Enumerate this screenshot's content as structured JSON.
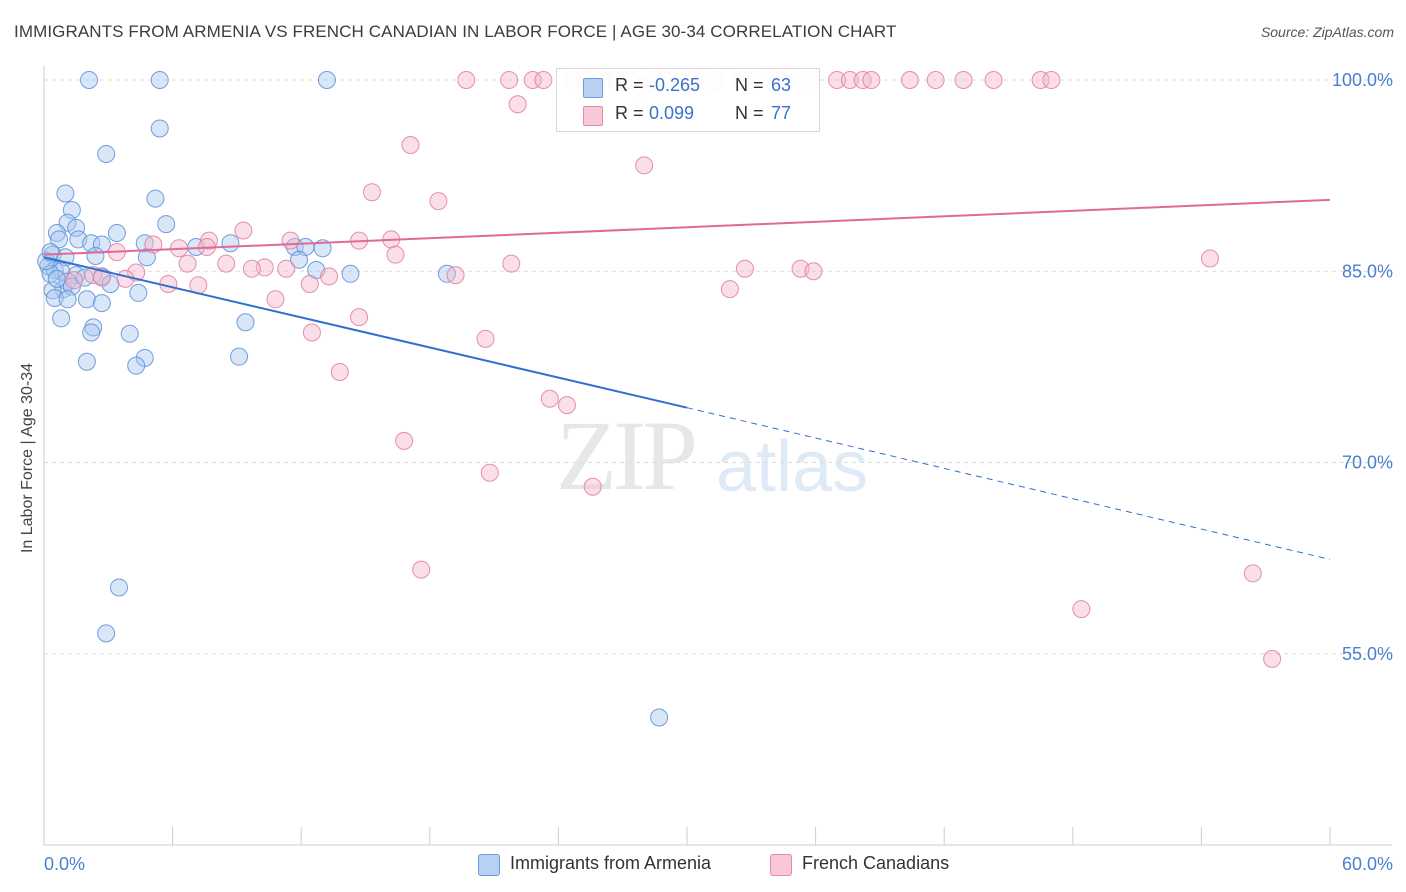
{
  "title": "IMMIGRANTS FROM ARMENIA VS FRENCH CANADIAN IN LABOR FORCE | AGE 30-34 CORRELATION CHART",
  "source": "Source: ZipAtlas.com",
  "watermark": {
    "zip": "ZIP",
    "atlas": "atlas"
  },
  "colors": {
    "blue": "#5b8fd6",
    "blue_fill": "#a9c7ef",
    "pink": "#e07ca0",
    "pink_fill": "#f4b8cc",
    "blue_line": "#2f6fd0",
    "pink_line": "#e06a96",
    "tick": "#4a7fd0"
  },
  "legend": {
    "rows": [
      {
        "r_label": "R =",
        "r_value": "-0.265",
        "n_label": "N =",
        "n_value": "63"
      },
      {
        "r_label": "R =",
        "r_value": "0.099",
        "n_label": "N =",
        "n_value": "77"
      }
    ]
  },
  "bottom_legend": [
    "Immigrants from Armenia",
    "French Canadians"
  ],
  "chart_data": {
    "type": "scatter",
    "title": "IMMIGRANTS FROM ARMENIA VS FRENCH CANADIAN IN LABOR FORCE | AGE 30-34 CORRELATION CHART",
    "xlabel": "",
    "ylabel": "In Labor Force | Age 30-34",
    "xlim": [
      0,
      60
    ],
    "ylim": [
      40,
      101
    ],
    "x_tick_labels": [
      "0.0%",
      "60.0%"
    ],
    "y_tick_labels": [
      "100.0%",
      "85.0%",
      "70.0%",
      "55.0%"
    ],
    "y_ticks": [
      100,
      85,
      70,
      55
    ],
    "grid": true,
    "legend_position": "top-center",
    "series": [
      {
        "name": "Immigrants from Armenia",
        "color": "#5b8fd6",
        "r": -0.265,
        "n": 63,
        "trend": {
          "x0": 0,
          "y0": 86.1,
          "x1": 30,
          "y1": 74.3,
          "dashed_to_x": 60,
          "dashed_to_y": 62.4
        },
        "points": [
          [
            2.1,
            100
          ],
          [
            5.4,
            100
          ],
          [
            13.2,
            100
          ],
          [
            5.4,
            96.2
          ],
          [
            2.9,
            94.2
          ],
          [
            1.0,
            91.1
          ],
          [
            5.2,
            90.7
          ],
          [
            1.3,
            89.8
          ],
          [
            1.1,
            88.8
          ],
          [
            1.5,
            88.4
          ],
          [
            5.7,
            88.7
          ],
          [
            0.6,
            88.0
          ],
          [
            3.4,
            88.0
          ],
          [
            0.7,
            87.5
          ],
          [
            1.6,
            87.5
          ],
          [
            2.2,
            87.2
          ],
          [
            2.7,
            87.1
          ],
          [
            4.7,
            87.2
          ],
          [
            8.7,
            87.2
          ],
          [
            7.1,
            86.9
          ],
          [
            11.7,
            86.9
          ],
          [
            12.2,
            86.9
          ],
          [
            0.4,
            86.3
          ],
          [
            1.0,
            86.1
          ],
          [
            2.4,
            86.2
          ],
          [
            4.8,
            86.1
          ],
          [
            11.9,
            85.9
          ],
          [
            0.2,
            85.4
          ],
          [
            0.5,
            85.1
          ],
          [
            0.8,
            85.0
          ],
          [
            0.3,
            84.8
          ],
          [
            1.5,
            84.7
          ],
          [
            12.7,
            85.1
          ],
          [
            14.3,
            84.8
          ],
          [
            18.8,
            84.8
          ],
          [
            2.7,
            84.6
          ],
          [
            1.1,
            84.2
          ],
          [
            3.1,
            84.0
          ],
          [
            0.9,
            83.6
          ],
          [
            1.3,
            83.8
          ],
          [
            0.4,
            83.5
          ],
          [
            4.4,
            83.3
          ],
          [
            0.5,
            82.9
          ],
          [
            2.0,
            82.8
          ],
          [
            1.1,
            82.8
          ],
          [
            2.7,
            82.5
          ],
          [
            0.8,
            81.3
          ],
          [
            9.4,
            81.0
          ],
          [
            2.3,
            80.6
          ],
          [
            2.2,
            80.2
          ],
          [
            4.0,
            80.1
          ],
          [
            4.7,
            78.2
          ],
          [
            9.1,
            78.3
          ],
          [
            2.0,
            77.9
          ],
          [
            4.3,
            77.6
          ],
          [
            3.5,
            60.2
          ],
          [
            2.9,
            56.6
          ],
          [
            28.7,
            50.0
          ],
          [
            0.1,
            85.8
          ],
          [
            0.3,
            86.5
          ],
          [
            1.9,
            84.5
          ],
          [
            0.6,
            84.4
          ],
          [
            13.0,
            86.8
          ]
        ]
      },
      {
        "name": "French Canadians",
        "color": "#e07ca0",
        "r": 0.099,
        "n": 77,
        "trend": {
          "x0": 0,
          "y0": 86.3,
          "x1": 60,
          "y1": 90.6
        },
        "points": [
          [
            19.7,
            100
          ],
          [
            21.7,
            100
          ],
          [
            22.8,
            100
          ],
          [
            23.3,
            100
          ],
          [
            24.7,
            100
          ],
          [
            25.3,
            100
          ],
          [
            26.0,
            100
          ],
          [
            26.7,
            100
          ],
          [
            27.4,
            100
          ],
          [
            28.5,
            100
          ],
          [
            29.0,
            100
          ],
          [
            30.3,
            100
          ],
          [
            31.3,
            100
          ],
          [
            32.6,
            100
          ],
          [
            33.0,
            100
          ],
          [
            34.3,
            100
          ],
          [
            35.7,
            100
          ],
          [
            37.0,
            100
          ],
          [
            37.6,
            100
          ],
          [
            38.2,
            100
          ],
          [
            40.4,
            100
          ],
          [
            42.9,
            100
          ],
          [
            44.3,
            100
          ],
          [
            46.5,
            100
          ],
          [
            47.0,
            100
          ],
          [
            41.6,
            100
          ],
          [
            38.6,
            100
          ],
          [
            22.1,
            98.1
          ],
          [
            27.9,
            99.4
          ],
          [
            17.1,
            94.9
          ],
          [
            28.0,
            93.3
          ],
          [
            15.3,
            91.2
          ],
          [
            18.4,
            90.5
          ],
          [
            9.3,
            88.2
          ],
          [
            7.7,
            87.4
          ],
          [
            14.7,
            87.4
          ],
          [
            16.2,
            87.5
          ],
          [
            7.6,
            86.9
          ],
          [
            11.5,
            87.4
          ],
          [
            5.1,
            87.1
          ],
          [
            6.3,
            86.8
          ],
          [
            3.4,
            86.5
          ],
          [
            16.4,
            86.3
          ],
          [
            10.3,
            85.3
          ],
          [
            8.5,
            85.6
          ],
          [
            9.7,
            85.2
          ],
          [
            6.7,
            85.6
          ],
          [
            4.3,
            84.9
          ],
          [
            11.3,
            85.2
          ],
          [
            13.3,
            84.6
          ],
          [
            2.3,
            84.7
          ],
          [
            3.8,
            84.4
          ],
          [
            2.7,
            84.5
          ],
          [
            1.4,
            84.3
          ],
          [
            5.8,
            84.0
          ],
          [
            7.2,
            83.9
          ],
          [
            12.4,
            84.0
          ],
          [
            21.8,
            85.6
          ],
          [
            19.2,
            84.7
          ],
          [
            32.7,
            85.2
          ],
          [
            35.3,
            85.2
          ],
          [
            35.9,
            85.0
          ],
          [
            32.0,
            83.6
          ],
          [
            10.8,
            82.8
          ],
          [
            14.7,
            81.4
          ],
          [
            12.5,
            80.2
          ],
          [
            20.6,
            79.7
          ],
          [
            13.8,
            77.1
          ],
          [
            23.6,
            75.0
          ],
          [
            24.4,
            74.5
          ],
          [
            16.8,
            71.7
          ],
          [
            20.8,
            69.2
          ],
          [
            25.6,
            68.1
          ],
          [
            17.6,
            61.6
          ],
          [
            54.4,
            86.0
          ],
          [
            48.4,
            58.5
          ],
          [
            57.3,
            54.6
          ],
          [
            56.4,
            61.3
          ]
        ]
      }
    ]
  }
}
